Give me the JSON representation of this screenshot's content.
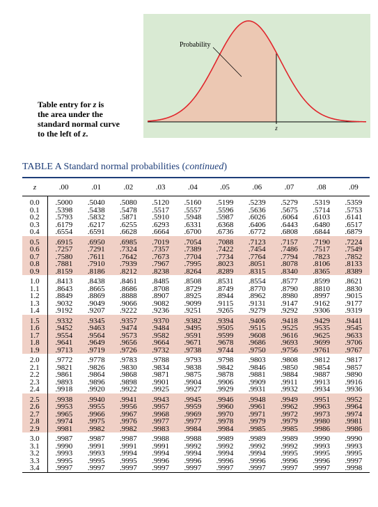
{
  "figure": {
    "curve_color": "#e0262c",
    "fill_color": "#ecc8b3",
    "panel_color": "#d9ead3",
    "probability_label": "Probability",
    "z_label": "z"
  },
  "caption": {
    "line1_pre": "Table entry for ",
    "line1_var": "z",
    "line1_post": " is",
    "line2": "the area under the",
    "line3": "standard normal curve",
    "line4_pre": "to the left of ",
    "line4_var": "z",
    "line4_post": "."
  },
  "table": {
    "title_main": "TABLE A   Standard normal probabilities (",
    "title_cont": "continued",
    "title_close": ")",
    "title_color": "#1d3d78",
    "shade_color": "#f0d0c6",
    "z_header": "z",
    "col_headers": [
      ".00",
      ".01",
      ".02",
      ".03",
      ".04",
      ".05",
      ".06",
      ".07",
      ".08",
      ".09"
    ],
    "rows": [
      {
        "z": "0.0",
        "v": [
          ".5000",
          ".5040",
          ".5080",
          ".5120",
          ".5160",
          ".5199",
          ".5239",
          ".5279",
          ".5319",
          ".5359"
        ]
      },
      {
        "z": "0.1",
        "v": [
          ".5398",
          ".5438",
          ".5478",
          ".5517",
          ".5557",
          ".5596",
          ".5636",
          ".5675",
          ".5714",
          ".5753"
        ]
      },
      {
        "z": "0.2",
        "v": [
          ".5793",
          ".5832",
          ".5871",
          ".5910",
          ".5948",
          ".5987",
          ".6026",
          ".6064",
          ".6103",
          ".6141"
        ]
      },
      {
        "z": "0.3",
        "v": [
          ".6179",
          ".6217",
          ".6255",
          ".6293",
          ".6331",
          ".6368",
          ".6406",
          ".6443",
          ".6480",
          ".6517"
        ]
      },
      {
        "z": "0.4",
        "v": [
          ".6554",
          ".6591",
          ".6628",
          ".6664",
          ".6700",
          ".6736",
          ".6772",
          ".6808",
          ".6844",
          ".6879"
        ]
      },
      {
        "z": "0.5",
        "v": [
          ".6915",
          ".6950",
          ".6985",
          ".7019",
          ".7054",
          ".7088",
          ".7123",
          ".7157",
          ".7190",
          ".7224"
        ]
      },
      {
        "z": "0.6",
        "v": [
          ".7257",
          ".7291",
          ".7324",
          ".7357",
          ".7389",
          ".7422",
          ".7454",
          ".7486",
          ".7517",
          ".7549"
        ]
      },
      {
        "z": "0.7",
        "v": [
          ".7580",
          ".7611",
          ".7642",
          ".7673",
          ".7704",
          ".7734",
          ".7764",
          ".7794",
          ".7823",
          ".7852"
        ]
      },
      {
        "z": "0.8",
        "v": [
          ".7881",
          ".7910",
          ".7939",
          ".7967",
          ".7995",
          ".8023",
          ".8051",
          ".8078",
          ".8106",
          ".8133"
        ]
      },
      {
        "z": "0.9",
        "v": [
          ".8159",
          ".8186",
          ".8212",
          ".8238",
          ".8264",
          ".8289",
          ".8315",
          ".8340",
          ".8365",
          ".8389"
        ]
      },
      {
        "z": "1.0",
        "v": [
          ".8413",
          ".8438",
          ".8461",
          ".8485",
          ".8508",
          ".8531",
          ".8554",
          ".8577",
          ".8599",
          ".8621"
        ]
      },
      {
        "z": "1.1",
        "v": [
          ".8643",
          ".8665",
          ".8686",
          ".8708",
          ".8729",
          ".8749",
          ".8770",
          ".8790",
          ".8810",
          ".8830"
        ]
      },
      {
        "z": "1.2",
        "v": [
          ".8849",
          ".8869",
          ".8888",
          ".8907",
          ".8925",
          ".8944",
          ".8962",
          ".8980",
          ".8997",
          ".9015"
        ]
      },
      {
        "z": "1.3",
        "v": [
          ".9032",
          ".9049",
          ".9066",
          ".9082",
          ".9099",
          ".9115",
          ".9131",
          ".9147",
          ".9162",
          ".9177"
        ]
      },
      {
        "z": "1.4",
        "v": [
          ".9192",
          ".9207",
          ".9222",
          ".9236",
          ".9251",
          ".9265",
          ".9279",
          ".9292",
          ".9306",
          ".9319"
        ]
      },
      {
        "z": "1.5",
        "v": [
          ".9332",
          ".9345",
          ".9357",
          ".9370",
          ".9382",
          ".9394",
          ".9406",
          ".9418",
          ".9429",
          ".9441"
        ]
      },
      {
        "z": "1.6",
        "v": [
          ".9452",
          ".9463",
          ".9474",
          ".9484",
          ".9495",
          ".9505",
          ".9515",
          ".9525",
          ".9535",
          ".9545"
        ]
      },
      {
        "z": "1.7",
        "v": [
          ".9554",
          ".9564",
          ".9573",
          ".9582",
          ".9591",
          ".9599",
          ".9608",
          ".9616",
          ".9625",
          ".9633"
        ]
      },
      {
        "z": "1.8",
        "v": [
          ".9641",
          ".9649",
          ".9656",
          ".9664",
          ".9671",
          ".9678",
          ".9686",
          ".9693",
          ".9699",
          ".9706"
        ]
      },
      {
        "z": "1.9",
        "v": [
          ".9713",
          ".9719",
          ".9726",
          ".9732",
          ".9738",
          ".9744",
          ".9750",
          ".9756",
          ".9761",
          ".9767"
        ]
      },
      {
        "z": "2.0",
        "v": [
          ".9772",
          ".9778",
          ".9783",
          ".9788",
          ".9793",
          ".9798",
          ".9803",
          ".9808",
          ".9812",
          ".9817"
        ]
      },
      {
        "z": "2.1",
        "v": [
          ".9821",
          ".9826",
          ".9830",
          ".9834",
          ".9838",
          ".9842",
          ".9846",
          ".9850",
          ".9854",
          ".9857"
        ]
      },
      {
        "z": "2.2",
        "v": [
          ".9861",
          ".9864",
          ".9868",
          ".9871",
          ".9875",
          ".9878",
          ".9881",
          ".9884",
          ".9887",
          ".9890"
        ]
      },
      {
        "z": "2.3",
        "v": [
          ".9893",
          ".9896",
          ".9898",
          ".9901",
          ".9904",
          ".9906",
          ".9909",
          ".9911",
          ".9913",
          ".9916"
        ]
      },
      {
        "z": "2.4",
        "v": [
          ".9918",
          ".9920",
          ".9922",
          ".9925",
          ".9927",
          ".9929",
          ".9931",
          ".9932",
          ".9934",
          ".9936"
        ]
      },
      {
        "z": "2.5",
        "v": [
          ".9938",
          ".9940",
          ".9941",
          ".9943",
          ".9945",
          ".9946",
          ".9948",
          ".9949",
          ".9951",
          ".9952"
        ]
      },
      {
        "z": "2.6",
        "v": [
          ".9953",
          ".9955",
          ".9956",
          ".9957",
          ".9959",
          ".9960",
          ".9961",
          ".9962",
          ".9963",
          ".9964"
        ]
      },
      {
        "z": "2.7",
        "v": [
          ".9965",
          ".9966",
          ".9967",
          ".9968",
          ".9969",
          ".9970",
          ".9971",
          ".9972",
          ".9973",
          ".9974"
        ]
      },
      {
        "z": "2.8",
        "v": [
          ".9974",
          ".9975",
          ".9976",
          ".9977",
          ".9977",
          ".9978",
          ".9979",
          ".9979",
          ".9980",
          ".9981"
        ]
      },
      {
        "z": "2.9",
        "v": [
          ".9981",
          ".9982",
          ".9982",
          ".9983",
          ".9984",
          ".9984",
          ".9985",
          ".9985",
          ".9986",
          ".9986"
        ]
      },
      {
        "z": "3.0",
        "v": [
          ".9987",
          ".9987",
          ".9987",
          ".9988",
          ".9988",
          ".9989",
          ".9989",
          ".9989",
          ".9990",
          ".9990"
        ]
      },
      {
        "z": "3.1",
        "v": [
          ".9990",
          ".9991",
          ".9991",
          ".9991",
          ".9992",
          ".9992",
          ".9992",
          ".9992",
          ".9993",
          ".9993"
        ]
      },
      {
        "z": "3.2",
        "v": [
          ".9993",
          ".9993",
          ".9994",
          ".9994",
          ".9994",
          ".9994",
          ".9994",
          ".9995",
          ".9995",
          ".9995"
        ]
      },
      {
        "z": "3.3",
        "v": [
          ".9995",
          ".9995",
          ".9995",
          ".9996",
          ".9996",
          ".9996",
          ".9996",
          ".9996",
          ".9996",
          ".9997"
        ]
      },
      {
        "z": "3.4",
        "v": [
          ".9997",
          ".9997",
          ".9997",
          ".9997",
          ".9997",
          ".9997",
          ".9997",
          ".9997",
          ".9997",
          ".9998"
        ]
      }
    ]
  }
}
